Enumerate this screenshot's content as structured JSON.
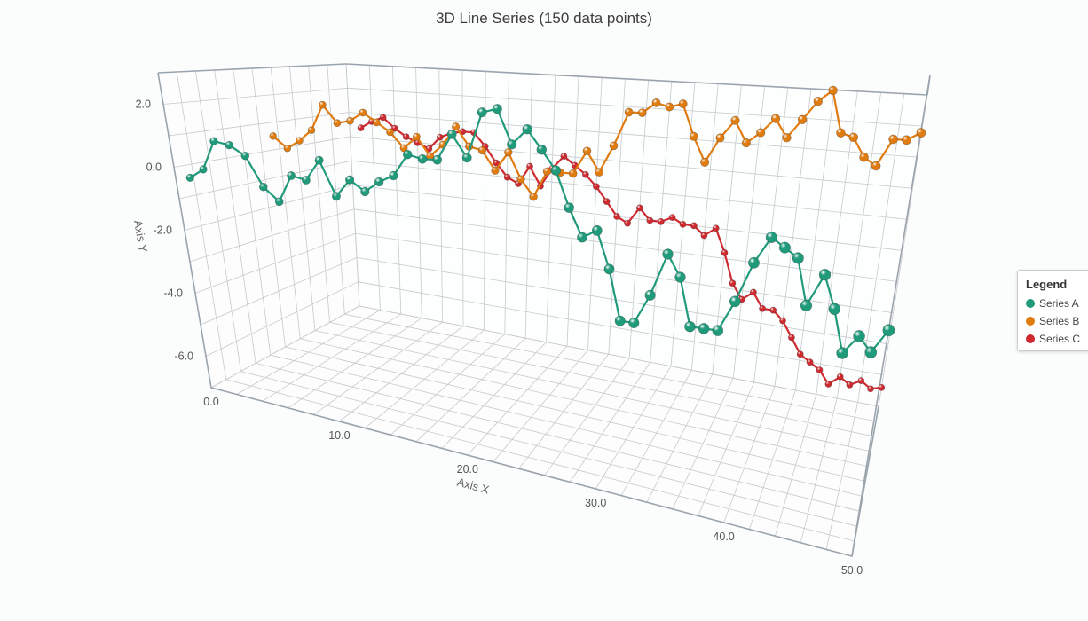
{
  "chart_data": {
    "type": "line",
    "title": "3D Line Series (150 data points)",
    "xlabel": "Axis X",
    "ylabel": "Axis Y",
    "xlim": [
      0,
      50
    ],
    "ylim": [
      -7,
      3
    ],
    "x_ticks": [
      "0.0",
      "10.0",
      "20.0",
      "30.0",
      "40.0",
      "50.0"
    ],
    "y_ticks": [
      "2.0",
      "0.0",
      "-2.0",
      "-4.0",
      "-6.0"
    ],
    "y_tick_values": [
      2,
      0,
      -2,
      -4,
      -6
    ],
    "legend": {
      "title": "Legend",
      "placement": "right"
    },
    "series": [
      {
        "name": "Series A",
        "color": "#1f9a7a",
        "z": 0.0,
        "x": [
          1,
          2,
          3,
          4,
          5,
          6,
          7,
          8,
          9,
          10,
          11,
          12,
          13,
          14,
          15,
          16,
          17,
          18,
          19,
          20,
          21,
          22,
          23,
          24,
          25,
          26,
          27,
          28,
          29,
          30,
          31,
          32,
          33,
          34,
          35,
          36,
          37,
          38,
          39,
          40,
          41,
          42,
          43,
          44,
          45,
          46,
          47,
          48,
          49,
          50
        ],
        "y": [
          -0.3,
          0.0,
          0.9,
          0.8,
          0.5,
          -0.4,
          -0.8,
          0.0,
          -0.1,
          0.5,
          -0.5,
          0.0,
          -0.3,
          0.0,
          0.2,
          0.8,
          0.7,
          0.7,
          1.4,
          0.8,
          2.0,
          2.1,
          1.2,
          1.6,
          1.1,
          0.6,
          -0.3,
          -1.0,
          -0.8,
          -1.7,
          -2.9,
          -2.9,
          -2.2,
          -1.2,
          -1.7,
          -2.8,
          -2.8,
          -2.8,
          -2.1,
          -1.2,
          -0.6,
          -0.8,
          -1.0,
          -2.0,
          -1.3,
          -2.0,
          -2.9,
          -2.5,
          -2.8,
          -2.3
        ]
      },
      {
        "name": "Series B",
        "color": "#e07b0f",
        "z": 0.5,
        "x": [
          1,
          2,
          3,
          4,
          5,
          6,
          7,
          8,
          9,
          10,
          11,
          12,
          13,
          14,
          15,
          16,
          17,
          18,
          19,
          20,
          21,
          22,
          23,
          24,
          25,
          26,
          27,
          28,
          29,
          30,
          31,
          32,
          33,
          34,
          35,
          36,
          37,
          38,
          39,
          40,
          41,
          42,
          43,
          44,
          45,
          46,
          47,
          48,
          49,
          50
        ],
        "y": [
          0.6,
          0.2,
          0.5,
          0.9,
          1.8,
          1.2,
          1.3,
          1.6,
          1.3,
          1.0,
          0.5,
          0.9,
          0.3,
          0.7,
          1.3,
          0.7,
          0.6,
          0.0,
          0.6,
          -0.2,
          -0.7,
          0.1,
          0.1,
          0.1,
          0.8,
          0.2,
          1.0,
          2.0,
          2.0,
          2.3,
          2.2,
          2.3,
          1.4,
          0.7,
          1.4,
          1.9,
          1.3,
          1.6,
          2.0,
          1.5,
          2.0,
          2.5,
          2.8,
          1.7,
          1.6,
          1.1,
          0.9,
          1.6,
          1.6,
          1.8
        ]
      },
      {
        "name": "Series C",
        "color": "#cf2a2f",
        "z": 1.0,
        "x": [
          1,
          2,
          3,
          4,
          5,
          6,
          7,
          8,
          9,
          10,
          11,
          12,
          13,
          14,
          15,
          16,
          17,
          18,
          19,
          20,
          21,
          22,
          23,
          24,
          25,
          26,
          27,
          28,
          29,
          30,
          31,
          32,
          33,
          34,
          35,
          36,
          37,
          38,
          39,
          40,
          41,
          42,
          43,
          44,
          45,
          46,
          47,
          48,
          49,
          50
        ],
        "y": [
          0.4,
          0.7,
          0.9,
          0.5,
          0.2,
          0.0,
          -0.2,
          0.3,
          0.5,
          0.6,
          0.6,
          0.1,
          -0.5,
          -1.0,
          -1.2,
          -0.5,
          -1.2,
          -0.5,
          0.0,
          -0.3,
          -0.6,
          -1.0,
          -1.5,
          -2.0,
          -2.2,
          -1.6,
          -2.0,
          -2.0,
          -1.8,
          -2.0,
          -2.0,
          -2.3,
          -2.0,
          -2.8,
          -3.8,
          -4.3,
          -4.0,
          -4.5,
          -4.5,
          -4.8,
          -5.3,
          -5.8,
          -6.0,
          -6.2,
          -6.6,
          -6.3,
          -6.5,
          -6.3,
          -6.5,
          -6.4
        ]
      }
    ]
  }
}
